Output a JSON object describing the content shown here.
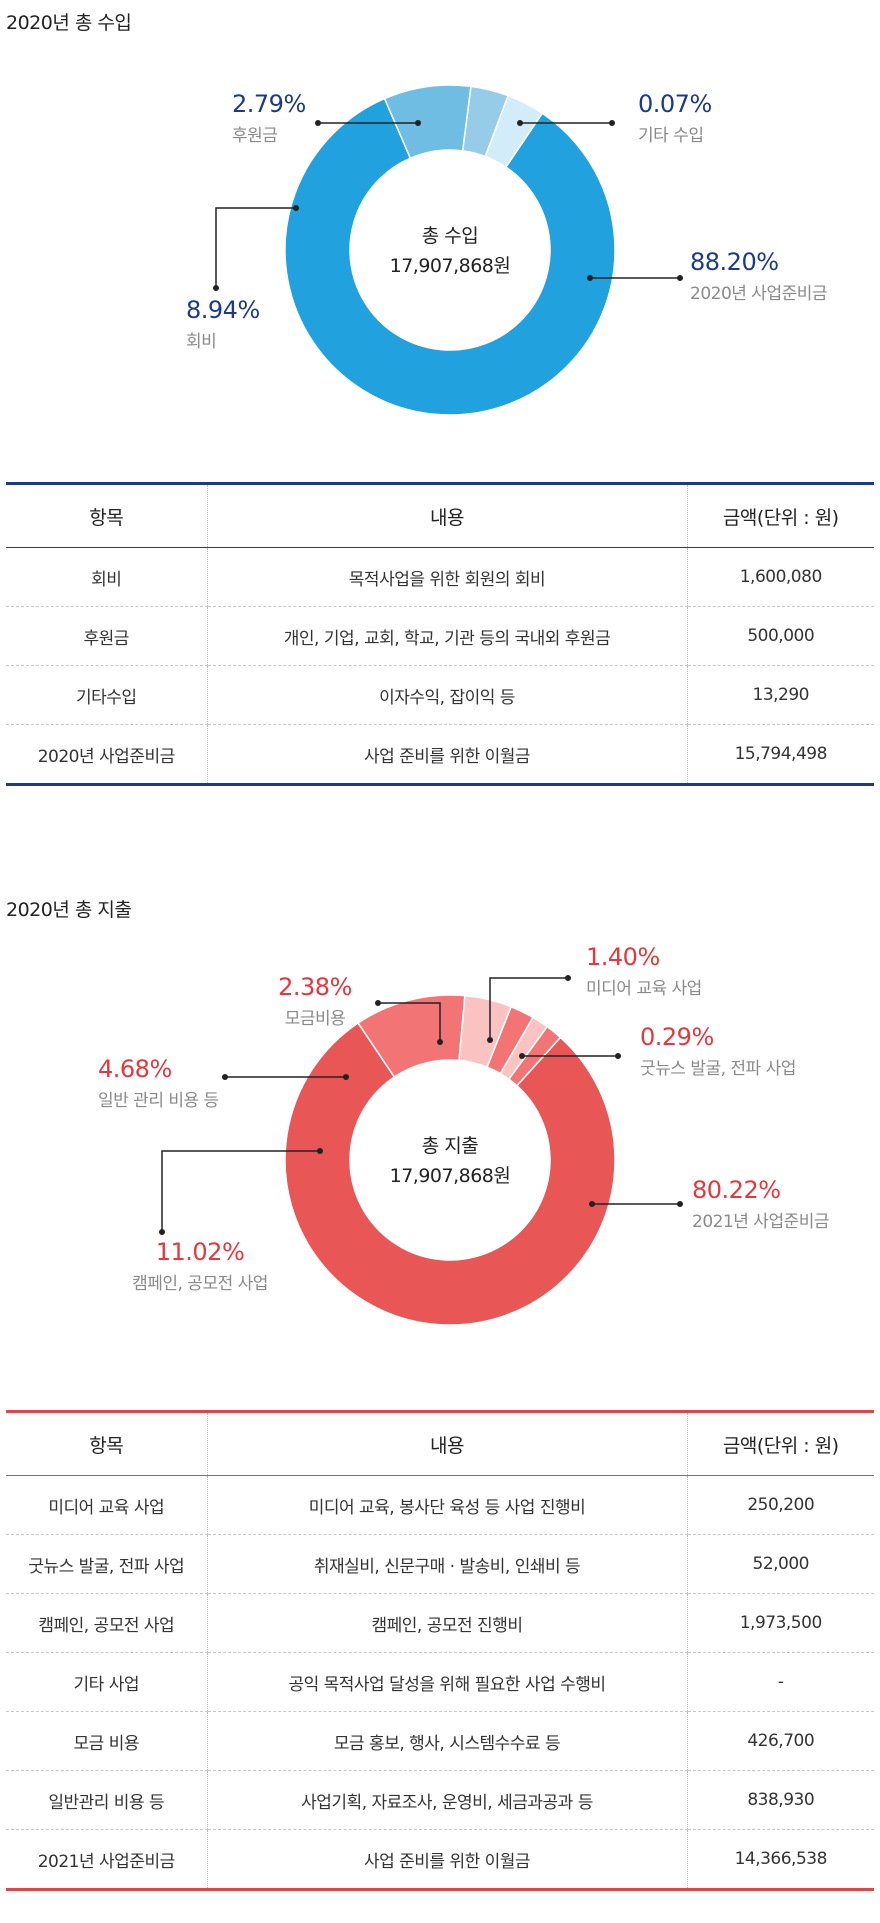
{
  "income": {
    "title": "2020년 총 수입",
    "center_label": "총 수입",
    "center_value": "17,907,868원",
    "pct_color": "#1c3a8a",
    "chart_data": {
      "type": "pie",
      "slices": [
        {
          "label": "2020년 사업준비금",
          "value": 88.2,
          "pct": "88.20%",
          "color": "#21a1dd"
        },
        {
          "label": "회비",
          "value": 8.94,
          "pct": "8.94%",
          "color": "#6fbde3"
        },
        {
          "label": "후원금",
          "value": 2.79,
          "pct": "2.79%",
          "color": "#96cce8"
        },
        {
          "label": "기타 수입",
          "value": 0.07,
          "pct": "0.07%",
          "color": "#d2edf9"
        }
      ]
    },
    "table": {
      "headers": [
        "항목",
        "내용",
        "금액(단위 : 원)"
      ],
      "rows": [
        [
          "회비",
          "목적사업을 위한 회원의 회비",
          "1,600,080"
        ],
        [
          "후원금",
          "개인, 기업, 교회, 학교, 기관 등의 국내외 후원금",
          "500,000"
        ],
        [
          "기타수입",
          "이자수익, 잡이익 등",
          "13,290"
        ],
        [
          "2020년 사업준비금",
          "사업 준비를 위한 이월금",
          "15,794,498"
        ]
      ]
    }
  },
  "expense": {
    "title": "2020년 총 지출",
    "center_label": "총 지출",
    "center_value": "17,907,868원",
    "pct_color": "#e8363c",
    "chart_data": {
      "type": "pie",
      "slices": [
        {
          "label": "2021년 사업준비금",
          "value": 80.22,
          "pct": "80.22%",
          "color": "#e85656"
        },
        {
          "label": "캠페인, 공모전 사업",
          "value": 11.02,
          "pct": "11.02%",
          "color": "#f27474"
        },
        {
          "label": "일반 관리 비용 등",
          "value": 4.68,
          "pct": "4.68%",
          "color": "#fbc2c2"
        },
        {
          "label": "모금비용",
          "value": 2.38,
          "pct": "2.38%",
          "color": "#f27474"
        },
        {
          "label": "미디어 교육 사업",
          "value": 1.4,
          "pct": "1.40%",
          "color": "#fbc2c2"
        },
        {
          "label": "굿뉴스 발굴, 전파 사업",
          "value": 0.29,
          "pct": "0.29%",
          "color": "#f27474"
        }
      ]
    },
    "table": {
      "headers": [
        "항목",
        "내용",
        "금액(단위 : 원)"
      ],
      "rows": [
        [
          "미디어 교육 사업",
          "미디어 교육, 봉사단 육성 등 사업 진행비",
          "250,200"
        ],
        [
          "굿뉴스 발굴, 전파 사업",
          "취재실비, 신문구매 · 발송비, 인쇄비 등",
          "52,000"
        ],
        [
          "캠페인, 공모전 사업",
          "캠페인, 공모전 진행비",
          "1,973,500"
        ],
        [
          "기타 사업",
          "공익 목적사업 달성을 위해 필요한 사업 수행비",
          "-"
        ],
        [
          "모금 비용",
          "모금 홍보, 행사, 시스템수수료 등",
          "426,700"
        ],
        [
          "일반관리 비용 등",
          "사업기획, 자료조사, 운영비, 세금과공과 등",
          "838,930"
        ],
        [
          "2021년 사업준비금",
          "사업 준비를 위한 이월금",
          "14,366,538"
        ]
      ]
    }
  }
}
